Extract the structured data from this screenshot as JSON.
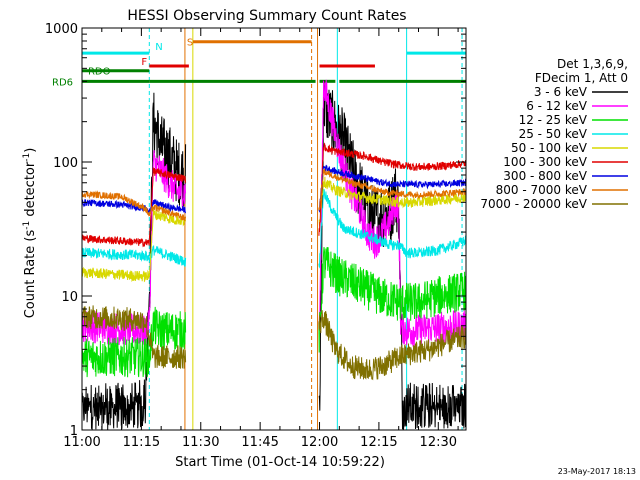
{
  "chart_data": {
    "type": "line",
    "title": "HESSI Observing Summary Count Rates",
    "xlabel": "Start Time (01-Oct-14 10:59:22)",
    "ylabel_main": "Count Rate (s",
    "ylabel_sup1": "-1",
    "ylabel_mid": " detector",
    "ylabel_sup2": "-1",
    "ylabel_end": ")",
    "yscale": "log",
    "ylim": [
      1,
      1000
    ],
    "xlim_minutes": [
      0,
      97
    ],
    "x_ticks": [
      {
        "m": 0,
        "label": "11:00"
      },
      {
        "m": 15,
        "label": "11:15"
      },
      {
        "m": 30,
        "label": "11:30"
      },
      {
        "m": 45,
        "label": "11:45"
      },
      {
        "m": 60,
        "label": "12:00"
      },
      {
        "m": 75,
        "label": "12:15"
      },
      {
        "m": 90,
        "label": "12:30"
      }
    ],
    "y_ticks": [
      {
        "v": 1,
        "label": "1"
      },
      {
        "v": 10,
        "label": "10"
      },
      {
        "v": 100,
        "label": "100"
      },
      {
        "v": 1000,
        "label": "1000"
      }
    ],
    "legend": {
      "header": [
        "Det 1,3,6,9,",
        "FDecim 1, Att 0"
      ],
      "placement": "right",
      "entries": [
        {
          "label": "3 - 6 keV",
          "color": "#000000"
        },
        {
          "label": "6 - 12 keV",
          "color": "#ff00ff"
        },
        {
          "label": "12 - 25 keV",
          "color": "#00e000"
        },
        {
          "label": "25 - 50 keV",
          "color": "#00e8e8"
        },
        {
          "label": "50 - 100 keV",
          "color": "#d8d800"
        },
        {
          "label": "100 - 300 keV",
          "color": "#e00000"
        },
        {
          "label": "300 - 800 keV",
          "color": "#0000e0"
        },
        {
          "label": "800 - 7000 keV",
          "color": "#e07000"
        },
        {
          "label": "7000 - 20000 keV",
          "color": "#807000"
        }
      ]
    },
    "flags": [
      {
        "label": "N",
        "color": "#00e8e8",
        "segments": [
          [
            0,
            17
          ],
          [
            82,
            97
          ]
        ],
        "level": 650
      },
      {
        "label": "S",
        "color": "#e07000",
        "segments": [
          [
            28,
            58
          ]
        ],
        "level": 790
      },
      {
        "label": "F",
        "color": "#e00000",
        "segments": [
          [
            17,
            27
          ],
          [
            60,
            74
          ]
        ],
        "level": 520
      },
      {
        "label": "RDO",
        "color": "#008000",
        "segments": [
          [
            0,
            17
          ]
        ],
        "level": 480
      },
      {
        "label": "RD6",
        "color": "#008000",
        "segments": [
          [
            0,
            17
          ],
          [
            17,
            59
          ],
          [
            60,
            64
          ],
          [
            65,
            97
          ]
        ],
        "level": 400
      }
    ],
    "vlines": [
      {
        "m": 0,
        "color": "#00e8e8",
        "dash": false
      },
      {
        "m": 17,
        "color": "#00e8e8",
        "dash": true
      },
      {
        "m": 26,
        "color": "#e07000",
        "dash": false
      },
      {
        "m": 28,
        "color": "#d8d800",
        "dash": false
      },
      {
        "m": 58,
        "color": "#e07000",
        "dash": true
      },
      {
        "m": 59.5,
        "color": "#e07000",
        "dash": false
      },
      {
        "m": 64.5,
        "color": "#00e8e8",
        "dash": false
      },
      {
        "m": 82,
        "color": "#00e8e8",
        "dash": false
      },
      {
        "m": 96,
        "color": "#00e8e8",
        "dash": true
      }
    ],
    "series": [
      {
        "name": "3 - 6 keV",
        "color": "#000000",
        "noise": 0.5,
        "gaps": true,
        "points": [
          [
            0,
            1.3
          ],
          [
            14,
            1.3
          ],
          [
            16,
            1.5
          ],
          [
            16.5,
            5
          ],
          [
            17.2,
            15
          ],
          [
            18,
            200
          ],
          [
            20,
            130
          ],
          [
            22,
            110
          ],
          [
            24,
            85
          ],
          [
            26,
            80
          ],
          [
            60,
            1.2
          ],
          [
            61,
            280
          ],
          [
            63,
            200
          ],
          [
            66,
            140
          ],
          [
            69,
            75
          ],
          [
            72,
            45
          ],
          [
            74,
            38
          ],
          [
            76,
            40
          ],
          [
            78,
            42
          ],
          [
            79,
            60
          ],
          [
            80,
            45
          ],
          [
            81,
            1.3
          ],
          [
            97,
            1.3
          ]
        ]
      },
      {
        "name": "6 - 12 keV",
        "color": "#ff00ff",
        "noise": 0.25,
        "gaps": false,
        "points": [
          [
            0,
            6
          ],
          [
            16,
            5.5
          ],
          [
            17,
            6
          ],
          [
            18,
            100
          ],
          [
            20,
            85
          ],
          [
            22,
            70
          ],
          [
            24,
            60
          ],
          [
            26,
            60
          ],
          [
            60,
            6
          ],
          [
            61,
            380
          ],
          [
            63,
            220
          ],
          [
            65,
            120
          ],
          [
            68,
            60
          ],
          [
            70,
            45
          ],
          [
            72,
            30
          ],
          [
            74,
            25
          ],
          [
            76,
            30
          ],
          [
            78,
            38
          ],
          [
            79,
            50
          ],
          [
            80,
            45
          ],
          [
            80.5,
            6
          ],
          [
            82,
            5.5
          ],
          [
            97,
            6
          ]
        ]
      },
      {
        "name": "12 - 25 keV",
        "color": "#00e000",
        "noise": 0.3,
        "gaps": false,
        "points": [
          [
            0,
            3.5
          ],
          [
            16,
            3.5
          ],
          [
            17,
            3.5
          ],
          [
            18,
            6
          ],
          [
            20,
            5.5
          ],
          [
            26,
            5.5
          ],
          [
            60,
            5
          ],
          [
            61,
            18
          ],
          [
            65,
            14
          ],
          [
            70,
            12
          ],
          [
            75,
            10
          ],
          [
            80,
            9
          ],
          [
            85,
            9
          ],
          [
            90,
            10
          ],
          [
            97,
            11
          ]
        ]
      },
      {
        "name": "25 - 50 keV",
        "color": "#00e8e8",
        "noise": 0.08,
        "gaps": false,
        "points": [
          [
            0,
            21
          ],
          [
            16,
            20
          ],
          [
            17,
            19
          ],
          [
            18,
            22
          ],
          [
            22,
            20
          ],
          [
            26,
            18
          ],
          [
            60,
            18
          ],
          [
            61,
            60
          ],
          [
            63,
            45
          ],
          [
            66,
            32
          ],
          [
            69,
            30
          ],
          [
            72,
            28
          ],
          [
            75,
            26
          ],
          [
            78,
            24
          ],
          [
            80,
            24
          ],
          [
            82,
            21
          ],
          [
            86,
            21
          ],
          [
            90,
            22
          ],
          [
            94,
            24
          ],
          [
            97,
            26
          ]
        ]
      },
      {
        "name": "50 - 100 keV",
        "color": "#d8d800",
        "noise": 0.08,
        "gaps": false,
        "points": [
          [
            0,
            15
          ],
          [
            16,
            14
          ],
          [
            17,
            14
          ],
          [
            18,
            41
          ],
          [
            22,
            38
          ],
          [
            26,
            36
          ],
          [
            60,
            36
          ],
          [
            61,
            72
          ],
          [
            64,
            62
          ],
          [
            68,
            57
          ],
          [
            72,
            54
          ],
          [
            76,
            52
          ],
          [
            80,
            50
          ],
          [
            84,
            50
          ],
          [
            90,
            52
          ],
          [
            97,
            55
          ]
        ]
      },
      {
        "name": "100 - 300 keV",
        "color": "#e00000",
        "noise": 0.06,
        "gaps": false,
        "points": [
          [
            0,
            27
          ],
          [
            16,
            25
          ],
          [
            17,
            25
          ],
          [
            18,
            85
          ],
          [
            22,
            80
          ],
          [
            26,
            75
          ],
          [
            60,
            30
          ],
          [
            61,
            130
          ],
          [
            64,
            120
          ],
          [
            68,
            115
          ],
          [
            72,
            110
          ],
          [
            76,
            100
          ],
          [
            80,
            95
          ],
          [
            84,
            92
          ],
          [
            88,
            92
          ],
          [
            92,
            94
          ],
          [
            97,
            98
          ]
        ]
      },
      {
        "name": "300 - 800 keV",
        "color": "#0000e0",
        "noise": 0.05,
        "gaps": false,
        "points": [
          [
            0,
            50
          ],
          [
            10,
            48
          ],
          [
            16,
            45
          ],
          [
            17,
            42
          ],
          [
            18,
            50
          ],
          [
            22,
            46
          ],
          [
            26,
            44
          ],
          [
            60,
            45
          ],
          [
            61,
            92
          ],
          [
            64,
            85
          ],
          [
            68,
            80
          ],
          [
            72,
            75
          ],
          [
            76,
            70
          ],
          [
            80,
            68
          ],
          [
            84,
            68
          ],
          [
            90,
            68
          ],
          [
            97,
            70
          ]
        ]
      },
      {
        "name": "800 - 7000 keV",
        "color": "#e07000",
        "noise": 0.05,
        "gaps": false,
        "points": [
          [
            0,
            58
          ],
          [
            10,
            55
          ],
          [
            16,
            45
          ],
          [
            17,
            40
          ],
          [
            18,
            46
          ],
          [
            22,
            42
          ],
          [
            26,
            38
          ],
          [
            60,
            45
          ],
          [
            61,
            85
          ],
          [
            64,
            78
          ],
          [
            68,
            70
          ],
          [
            72,
            65
          ],
          [
            76,
            60
          ],
          [
            80,
            58
          ],
          [
            84,
            57
          ],
          [
            90,
            58
          ],
          [
            97,
            60
          ]
        ]
      },
      {
        "name": "7000 - 20000 keV",
        "color": "#807000",
        "noise": 0.18,
        "gaps": false,
        "points": [
          [
            0,
            7
          ],
          [
            10,
            6.8
          ],
          [
            16,
            6.5
          ],
          [
            17,
            5
          ],
          [
            18,
            3.5
          ],
          [
            22,
            3.5
          ],
          [
            26,
            3.5
          ],
          [
            60,
            6
          ],
          [
            61,
            7
          ],
          [
            64,
            4
          ],
          [
            68,
            3
          ],
          [
            72,
            2.8
          ],
          [
            76,
            3
          ],
          [
            80,
            3.5
          ],
          [
            84,
            3.8
          ],
          [
            88,
            4
          ],
          [
            92,
            4.5
          ],
          [
            97,
            5
          ]
        ]
      }
    ]
  },
  "footer": {
    "date": "23-May-2017 18:13"
  }
}
